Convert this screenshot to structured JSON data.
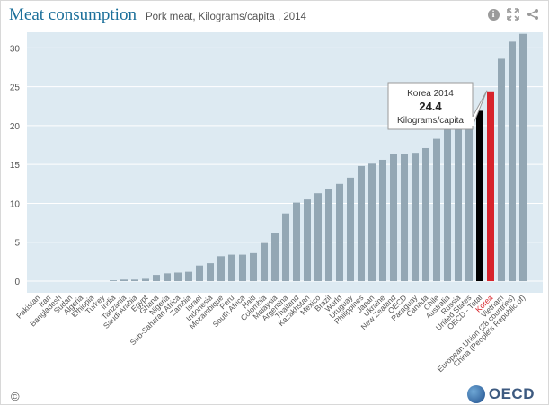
{
  "header": {
    "title": "Meat consumption",
    "subtitle": "Pork meat, Kilograms/capita , 2014"
  },
  "icons": [
    "info-icon",
    "expand-icon",
    "share-icon"
  ],
  "footer": {
    "copyright": "©",
    "logo_text": "OECD"
  },
  "colors": {
    "bar": "#93a7b4",
    "highlight": "#d7242c",
    "oecd_total": "#000000",
    "plot_bg": "#ddeaf2",
    "title": "#1b6f9a"
  },
  "tooltip": {
    "label": "Korea 2014",
    "value": "24.4",
    "unit": "Kilograms/capita"
  },
  "chart_data": {
    "type": "bar",
    "title": "Meat consumption",
    "ylim": [
      -1.5,
      32
    ],
    "yticks": [
      0,
      5,
      10,
      15,
      20,
      25,
      30
    ],
    "grid": true,
    "categories": [
      "Pakistan",
      "Iran",
      "Bangladesh",
      "Sudan",
      "Algeria",
      "Ethiopia",
      "Turkey",
      "India",
      "Tanzania",
      "Saudi Arabia",
      "Egypt",
      "Ghana",
      "Nigeria",
      "Sub-Saharan Africa",
      "Zambia",
      "Israel",
      "Indonesia",
      "Mozambique",
      "Peru",
      "South Africa",
      "Haiti",
      "Colombia",
      "Malaysia",
      "Argentina",
      "Thailand",
      "Kazakhstan",
      "Mexico",
      "Brazil",
      "World",
      "Uruguay",
      "Philippines",
      "Japan",
      "Ukraine",
      "New Zealand",
      "OECD",
      "Paraguay",
      "Canada",
      "Chile",
      "Australia",
      "Russia",
      "United States",
      "OECD - Total",
      "Korea",
      "Vietnam",
      "European Union (28 countries)",
      "China (People's Republic of)"
    ],
    "values": [
      0,
      0,
      0,
      0,
      0,
      0,
      0,
      0.1,
      0.2,
      0.2,
      0.3,
      0.8,
      1.0,
      1.1,
      1.2,
      2.0,
      2.3,
      3.2,
      3.4,
      3.4,
      3.6,
      4.9,
      6.2,
      8.7,
      10.1,
      10.5,
      11.3,
      11.9,
      12.5,
      13.3,
      14.8,
      15.1,
      15.6,
      16.4,
      16.4,
      16.5,
      17.1,
      18.3,
      20.2,
      20.2,
      20.6,
      21.9,
      24.4,
      28.6,
      30.8,
      31.8
    ],
    "highlight": {
      "Korea": "#d7242c",
      "OECD - Total": "#000000"
    }
  }
}
